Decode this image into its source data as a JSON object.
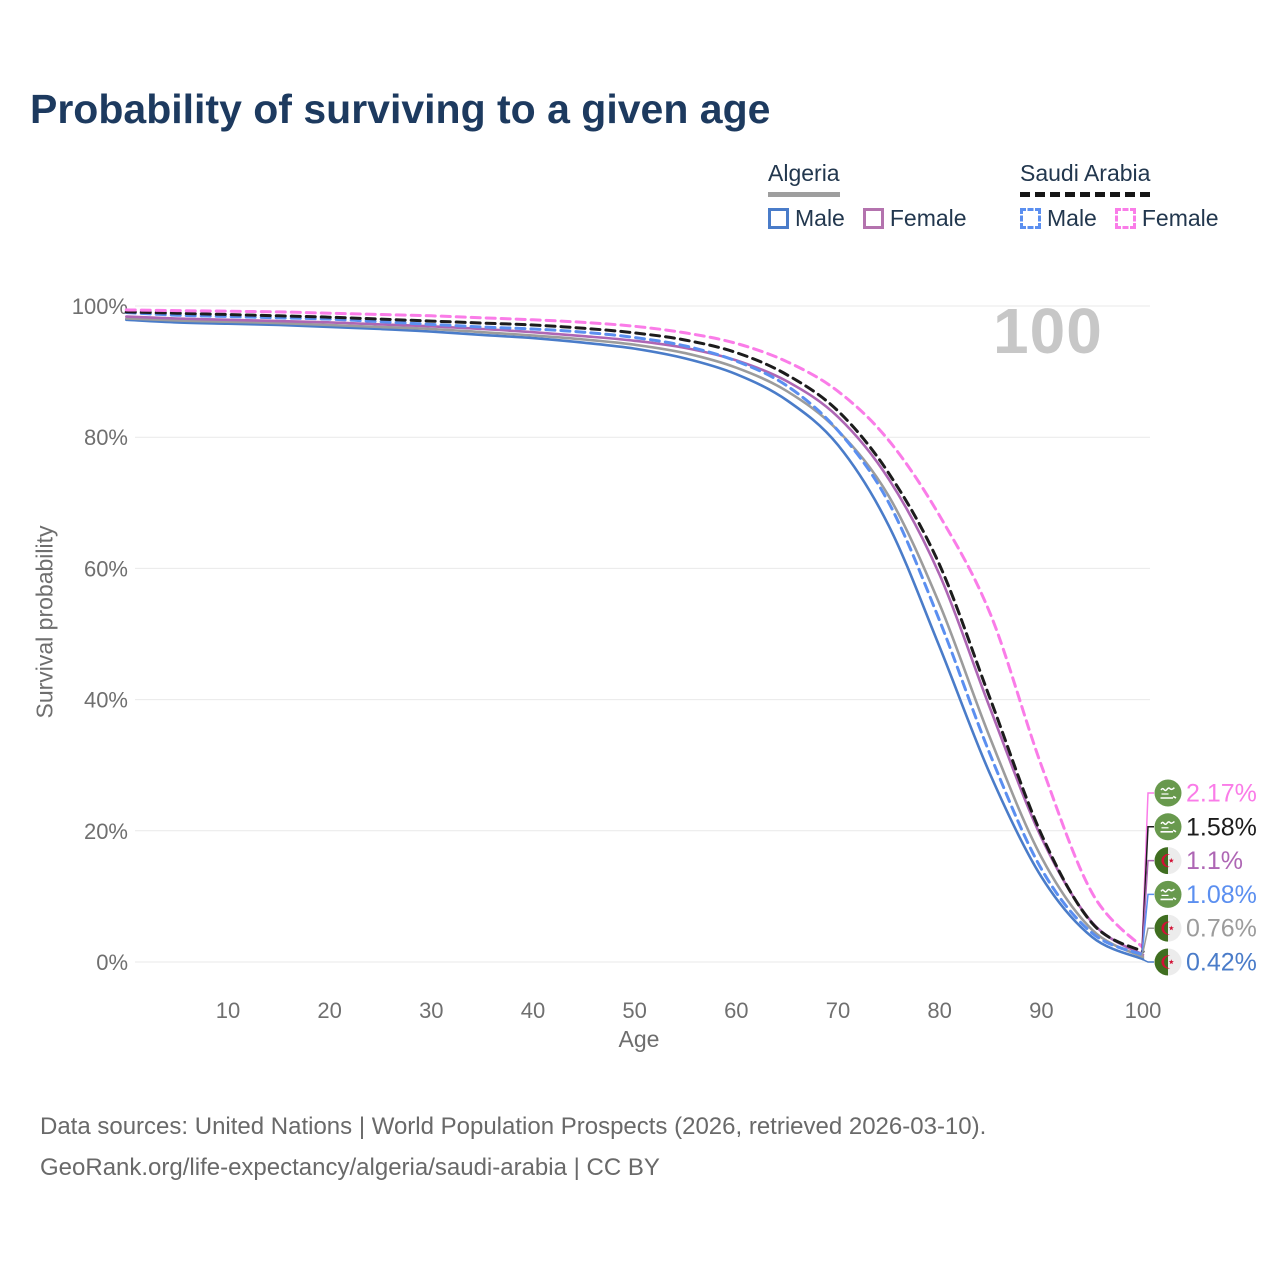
{
  "title": "Probability of surviving to a given age",
  "watermark": "100",
  "legend": {
    "groups": [
      {
        "country": "Algeria",
        "line_style": "solid",
        "underline_color": "#9e9e9e",
        "items": [
          {
            "label": "Male",
            "color": "#4a7cc9",
            "style": "solid"
          },
          {
            "label": "Female",
            "color": "#b473ae",
            "style": "solid"
          }
        ]
      },
      {
        "country": "Saudi Arabia",
        "line_style": "dashed",
        "underline_color": "#151515",
        "items": [
          {
            "label": "Male",
            "color": "#5b8ff0",
            "style": "dashed"
          },
          {
            "label": "Female",
            "color": "#fa7ce8",
            "style": "dashed"
          }
        ]
      }
    ]
  },
  "chart_data": {
    "type": "line",
    "title": "Probability of surviving to a given age",
    "xlabel": "Age",
    "ylabel": "Survival probability",
    "xlim": [
      0,
      100
    ],
    "ylim": [
      0,
      100
    ],
    "grid": "horizontal",
    "x_ticks": [
      10,
      20,
      30,
      40,
      50,
      60,
      70,
      80,
      90,
      100
    ],
    "y_ticks": [
      {
        "pct": 0,
        "label": "0%"
      },
      {
        "pct": 20,
        "label": "20%"
      },
      {
        "pct": 40,
        "label": "40%"
      },
      {
        "pct": 60,
        "label": "60%"
      },
      {
        "pct": 80,
        "label": "80%"
      },
      {
        "pct": 100,
        "label": "100%"
      }
    ],
    "x": [
      0,
      5,
      10,
      15,
      20,
      25,
      30,
      35,
      40,
      45,
      50,
      55,
      60,
      65,
      70,
      75,
      80,
      85,
      90,
      95,
      100
    ],
    "series": [
      {
        "name": "Algeria Male",
        "flag": "dz",
        "color": "#4a7cc9",
        "dash": "solid",
        "values": [
          97.9,
          97.5,
          97.3,
          97.1,
          96.8,
          96.5,
          96.1,
          95.6,
          95.1,
          94.4,
          93.5,
          92.0,
          89.6,
          85.6,
          78.8,
          66.5,
          48.0,
          28.5,
          13.0,
          3.8,
          0.42
        ],
        "end_label": "0.42%"
      },
      {
        "name": "Algeria",
        "flag": "dz",
        "color": "#9c9c9c",
        "dash": "solid",
        "values": [
          98.1,
          97.8,
          97.6,
          97.4,
          97.1,
          96.8,
          96.5,
          96.0,
          95.5,
          94.9,
          94.1,
          92.8,
          90.6,
          87.0,
          81.0,
          71.0,
          54.5,
          34.0,
          16.0,
          4.9,
          0.76
        ],
        "end_label": "0.76%"
      },
      {
        "name": "Algeria Female",
        "flag": "dz",
        "color": "#ae66b4",
        "dash": "solid",
        "values": [
          98.4,
          98.1,
          97.9,
          97.7,
          97.5,
          97.2,
          96.9,
          96.5,
          96.0,
          95.4,
          94.7,
          93.6,
          91.7,
          88.5,
          83.1,
          73.6,
          59.0,
          38.5,
          19.0,
          6.0,
          1.1
        ],
        "end_label": "1.1%"
      },
      {
        "name": "Saudi Arabia Male",
        "flag": "sa",
        "color": "#5b8ff0",
        "dash": "dashed",
        "values": [
          99.0,
          98.6,
          98.4,
          98.2,
          98.0,
          97.6,
          97.2,
          96.8,
          96.5,
          96.0,
          95.2,
          93.9,
          91.6,
          87.8,
          81.0,
          70.0,
          52.0,
          31.5,
          14.2,
          4.4,
          1.08
        ],
        "end_label": "1.08%"
      },
      {
        "name": "Saudi Arabia",
        "flag": "sa",
        "color": "#1c1c1c",
        "dash": "dashed",
        "values": [
          99.1,
          98.9,
          98.7,
          98.5,
          98.3,
          98.0,
          97.7,
          97.4,
          97.1,
          96.6,
          95.9,
          94.8,
          92.9,
          89.5,
          84.0,
          74.5,
          60.5,
          40.0,
          19.5,
          5.9,
          1.58
        ],
        "end_label": "1.58%"
      },
      {
        "name": "Saudi Arabia Female",
        "flag": "sa",
        "color": "#fa7ce8",
        "dash": "dashed",
        "values": [
          99.4,
          99.3,
          99.2,
          99.1,
          98.9,
          98.7,
          98.5,
          98.2,
          97.9,
          97.5,
          96.9,
          95.9,
          94.3,
          91.5,
          87.0,
          79.5,
          68.0,
          53.0,
          30.0,
          10.5,
          2.17
        ],
        "end_label": "2.17%"
      }
    ],
    "annotations": {
      "max_age_watermark": "100"
    }
  },
  "flag_colors": {
    "saudi_green": "#68994d",
    "algeria_green": "#3f6e20",
    "algeria_white": "#ececec",
    "algeria_red": "#d21034"
  },
  "footer": {
    "line1": "Data sources: United Nations | World Population Prospects (2026, retrieved 2026-03-10).",
    "line2": "GeoRank.org/life-expectancy/algeria/saudi-arabia | CC BY"
  }
}
